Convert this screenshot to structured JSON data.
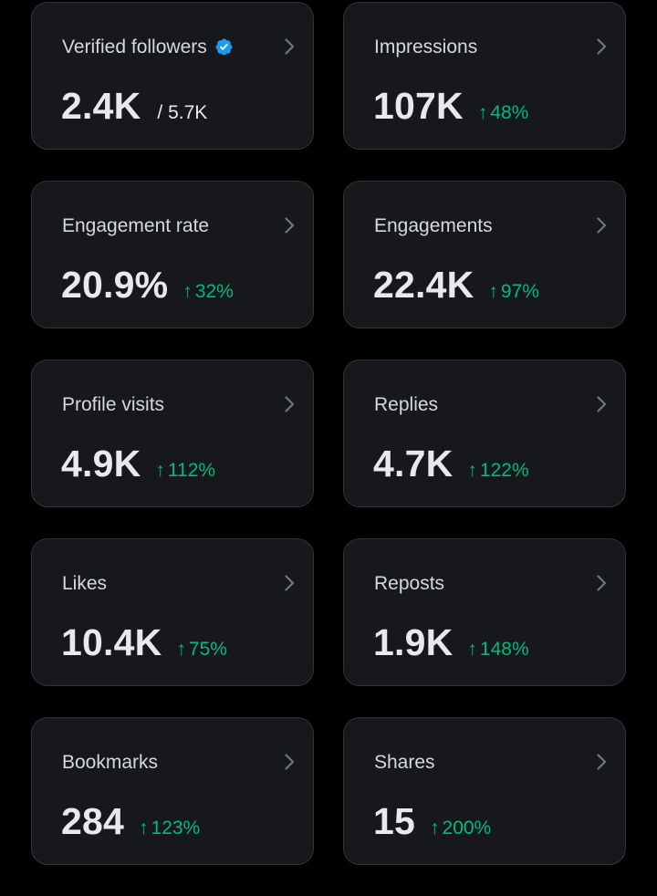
{
  "colors": {
    "background": "#000000",
    "card": "#16181c",
    "border": "#2f3336",
    "text": "#e7e9ea",
    "muted": "#d6d9db",
    "positive": "#00ba7c",
    "verified": "#1d9bf0"
  },
  "icons": {
    "verified": "verified-badge-icon",
    "chevron": "chevron-right-icon",
    "arrow": "arrow-up-icon"
  },
  "arrow_glyph": "↑",
  "cards": [
    {
      "label": "Verified followers",
      "value": "2.4K",
      "sub": "/ 5.7K"
    },
    {
      "label": "Impressions",
      "value": "107K",
      "change": "48%"
    },
    {
      "label": "Engagement rate",
      "value": "20.9%",
      "change": "32%"
    },
    {
      "label": "Engagements",
      "value": "22.4K",
      "change": "97%"
    },
    {
      "label": "Profile visits",
      "value": "4.9K",
      "change": "112%"
    },
    {
      "label": "Replies",
      "value": "4.7K",
      "change": "122%"
    },
    {
      "label": "Likes",
      "value": "10.4K",
      "change": "75%"
    },
    {
      "label": "Reposts",
      "value": "1.9K",
      "change": "148%"
    },
    {
      "label": "Bookmarks",
      "value": "284",
      "change": "123%"
    },
    {
      "label": "Shares",
      "value": "15",
      "change": "200%"
    }
  ]
}
